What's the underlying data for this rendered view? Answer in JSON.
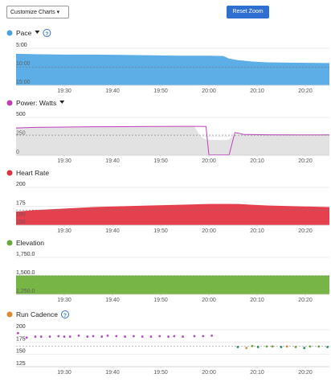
{
  "toolbar": {
    "customize_label": "Customize Charts",
    "customize_caret": "▾",
    "reset_label": "Reset Zoom",
    "reset_color": "#2f6fd1"
  },
  "chart_data": [
    {
      "type": "area",
      "title": "Pace",
      "has_dropdown": true,
      "has_help": true,
      "dot_color": "#4aa3df",
      "fill_color": "#5daee6",
      "y_ticks": [
        "5:00",
        "10:00",
        "15:00"
      ],
      "ylim": [
        5,
        15
      ],
      "y_reversed": true,
      "avg_value": 10.1,
      "x_ticks": [
        "19:30",
        "19:40",
        "19:50",
        "20:00",
        "20:10",
        "20:20"
      ],
      "x_domain": [
        19.3333,
        20.4167
      ],
      "x": [
        19.3333,
        19.4,
        19.5,
        19.6,
        19.7,
        19.8,
        19.9,
        20.0,
        20.05,
        20.07,
        20.1,
        20.15,
        20.2,
        20.3,
        20.4167
      ],
      "values": [
        6.5,
        6.6,
        6.7,
        6.7,
        6.8,
        6.9,
        7.0,
        7.0,
        7.1,
        7.8,
        8.2,
        8.6,
        8.8,
        8.9,
        9.0
      ]
    },
    {
      "type": "area",
      "title": "Power: Watts",
      "has_dropdown": true,
      "has_help": false,
      "dot_color": "#c03fb8",
      "fill_color": "#e2e2e2",
      "line_color": "#c23cc0",
      "y_ticks": [
        "0",
        "250",
        "500"
      ],
      "ylim": [
        0,
        500
      ],
      "y_reversed": false,
      "avg_value": 265,
      "x_ticks": [
        "19:30",
        "19:40",
        "19:50",
        "20:00",
        "20:10",
        "20:20"
      ],
      "x_domain": [
        19.3333,
        20.4167
      ],
      "x": [
        19.3333,
        19.4,
        19.5,
        19.6,
        19.7,
        19.8,
        19.9,
        19.95,
        19.97,
        19.99,
        20.05,
        20.07,
        20.09,
        20.12,
        20.2,
        20.3,
        20.4167
      ],
      "values": [
        360,
        368,
        372,
        376,
        378,
        380,
        382,
        382,
        250,
        205,
        200,
        210,
        270,
        275,
        270,
        268,
        268
      ],
      "line_x": [
        19.3333,
        19.4,
        19.5,
        19.6,
        19.7,
        19.8,
        19.9,
        19.97,
        19.99,
        20.0,
        20.04,
        20.07,
        20.09,
        20.12,
        20.2,
        20.3,
        20.4167
      ],
      "line_values": [
        360,
        368,
        372,
        376,
        378,
        380,
        382,
        382,
        380,
        5,
        5,
        5,
        300,
        275,
        270,
        268,
        268
      ]
    },
    {
      "type": "area",
      "title": "Heart Rate",
      "has_dropdown": false,
      "has_help": false,
      "dot_color": "#e03040",
      "fill_color": "#e5404e",
      "y_ticks": [
        "150",
        "160",
        "175",
        "200"
      ],
      "ylim": [
        150,
        200
      ],
      "y_reversed": false,
      "avg_value": 170,
      "x_ticks": [
        "19:30",
        "19:40",
        "19:50",
        "20:00",
        "20:10",
        "20:20"
      ],
      "x_domain": [
        19.3333,
        20.4167
      ],
      "x": [
        19.3333,
        19.4,
        19.5,
        19.6,
        19.7,
        19.8,
        19.9,
        20.0,
        20.1,
        20.15,
        20.2,
        20.3,
        20.4167
      ],
      "values": [
        168,
        170,
        172,
        174,
        175,
        176,
        177,
        178,
        178,
        177,
        176,
        175,
        174
      ]
    },
    {
      "type": "area",
      "title": "Elevation",
      "has_dropdown": false,
      "has_help": false,
      "dot_color": "#6aaa3a",
      "fill_color": "#77b546",
      "y_ticks": [
        "1,250.0",
        "1,500.0",
        "1,750.0"
      ],
      "ylim": [
        1250,
        1750
      ],
      "y_reversed": false,
      "avg_value": 1500,
      "x_ticks": [
        "19:30",
        "19:40",
        "19:50",
        "20:00",
        "20:10",
        "20:20"
      ],
      "x_domain": [
        19.3333,
        20.4167
      ],
      "x": [
        19.3333,
        20.4167
      ],
      "values": [
        1505,
        1505
      ]
    },
    {
      "type": "scatter",
      "title": "Run Cadence",
      "has_dropdown": false,
      "has_help": true,
      "dot_color": "#e08a30",
      "y_ticks": [
        "125",
        "150",
        "175",
        "200"
      ],
      "ylim": [
        125,
        200
      ],
      "y_reversed": false,
      "avg_value": 167,
      "x_ticks": [
        "19:30",
        "19:40",
        "19:50",
        "20:00",
        "20:10",
        "20:20"
      ],
      "x_domain": [
        19.3333,
        20.4167
      ],
      "x": [
        19.34,
        19.37,
        19.4,
        19.42,
        19.45,
        19.48,
        19.5,
        19.52,
        19.55,
        19.58,
        19.6,
        19.63,
        19.65,
        19.68,
        19.71,
        19.74,
        19.77,
        19.8,
        19.83,
        19.86,
        19.88,
        19.91,
        19.95,
        19.98,
        20.01,
        20.1,
        20.13,
        20.15,
        20.17,
        20.2,
        20.22,
        20.25,
        20.27,
        20.3,
        20.33,
        20.35,
        20.38,
        20.41
      ],
      "values": [
        193,
        184,
        186,
        186,
        186,
        187,
        186,
        186,
        188,
        186,
        187,
        186,
        188,
        187,
        186,
        187,
        186,
        186,
        187,
        186,
        187,
        186,
        187,
        187,
        188,
        165,
        163,
        167,
        165,
        166,
        166,
        165,
        166,
        165,
        163,
        166,
        166,
        165
      ],
      "point_colors": [
        "#c03fb8",
        "#b04fc0",
        "#b04fc0",
        "#b04fc0",
        "#b04fc0",
        "#b04fc0",
        "#b04fc0",
        "#b04fc0",
        "#b04fc0",
        "#b04fc0",
        "#b04fc0",
        "#b04fc0",
        "#b04fc0",
        "#b04fc0",
        "#b04fc0",
        "#b04fc0",
        "#b04fc0",
        "#b04fc0",
        "#b04fc0",
        "#b04fc0",
        "#b04fc0",
        "#b04fc0",
        "#b04fc0",
        "#b04fc0",
        "#b04fc0",
        "#2f8f5a",
        "#e08a30",
        "#6aaa3a",
        "#2f8f5a",
        "#6aaa3a",
        "#6aaa3a",
        "#2f8f5a",
        "#e08a30",
        "#6aaa3a",
        "#2f8f5a",
        "#6aaa3a",
        "#6aaa3a",
        "#2f8f5a"
      ]
    }
  ]
}
